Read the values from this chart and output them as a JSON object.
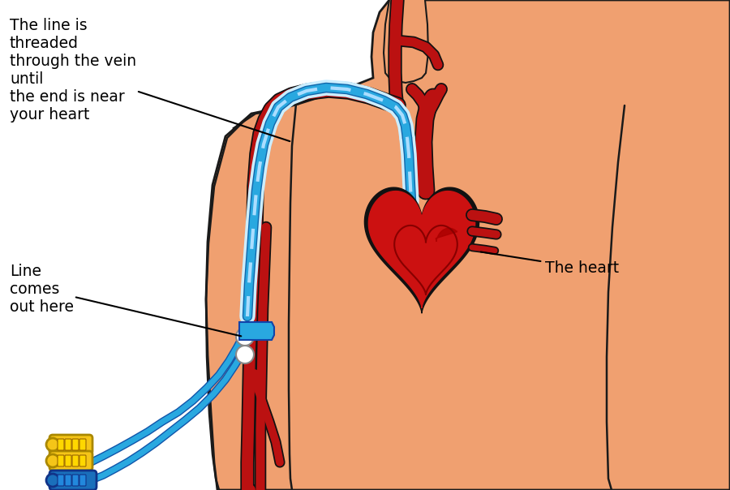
{
  "bg_color": "#ffffff",
  "skin_color": "#F0A070",
  "skin_shadow": "#D4784A",
  "skin_outline": "#1a1a1a",
  "vein_color": "#BB1111",
  "catheter_blue": "#29A8E0",
  "catheter_light": "#AADDFF",
  "connector_yellow": "#F5C518",
  "connector_blue": "#1A6FBB",
  "heart_red": "#CC1111",
  "text_color": "#000000",
  "label1": "The line is\nthreaded\nthrough the vein\nuntil\nthe end is near\nyour heart",
  "label2": "Line\ncomes\nout here",
  "label3": "The heart",
  "figsize": [
    9.0,
    6.04
  ],
  "dpi": 100
}
